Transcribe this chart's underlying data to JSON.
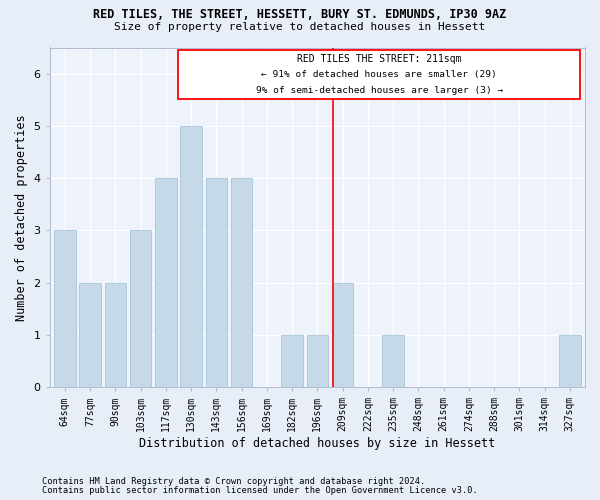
{
  "title1": "RED TILES, THE STREET, HESSETT, BURY ST. EDMUNDS, IP30 9AZ",
  "title2": "Size of property relative to detached houses in Hessett",
  "xlabel": "Distribution of detached houses by size in Hessett",
  "ylabel": "Number of detached properties",
  "categories": [
    "64sqm",
    "77sqm",
    "90sqm",
    "103sqm",
    "117sqm",
    "130sqm",
    "143sqm",
    "156sqm",
    "169sqm",
    "182sqm",
    "196sqm",
    "209sqm",
    "222sqm",
    "235sqm",
    "248sqm",
    "261sqm",
    "274sqm",
    "288sqm",
    "301sqm",
    "314sqm",
    "327sqm"
  ],
  "values": [
    3,
    2,
    2,
    3,
    4,
    5,
    4,
    4,
    0,
    1,
    1,
    2,
    0,
    1,
    0,
    0,
    0,
    0,
    0,
    0,
    1
  ],
  "bar_color": "#c6d9e8",
  "bar_edge_color": "#a8c4d8",
  "red_line_idx": 10.62,
  "red_line_label": "RED TILES THE STREET: 211sqm",
  "annotation_line1": "← 91% of detached houses are smaller (29)",
  "annotation_line2": "9% of semi-detached houses are larger (3) →",
  "ylim": [
    0,
    6.5
  ],
  "yticks": [
    0,
    1,
    2,
    3,
    4,
    5,
    6
  ],
  "footnote1": "Contains HM Land Registry data © Crown copyright and database right 2024.",
  "footnote2": "Contains public sector information licensed under the Open Government Licence v3.0.",
  "bg_color": "#e8eef8",
  "plot_bg_color": "#eef2fa"
}
